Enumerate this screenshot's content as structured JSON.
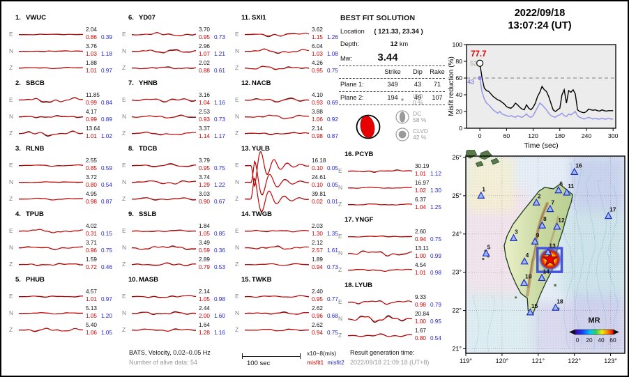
{
  "header": {
    "date": "2022/09/18",
    "time": "13:07:24  (UT)"
  },
  "best_fit": {
    "title": "BEST FIT SOLUTION",
    "location_label": "Location",
    "location_value": "( 121.33,  23.34 )",
    "depth_label": "Depth:",
    "depth_value": "12",
    "depth_unit": "km",
    "mw_label": "Mw:",
    "mw_value": "3.44",
    "table": {
      "headers": [
        "Strike",
        "Dip",
        "Rake"
      ],
      "rows": [
        {
          "label": "Plane 1:",
          "strike": "349",
          "dip": "43",
          "rake": "71"
        },
        {
          "label": "Plane 2:",
          "strike": "194",
          "dip": "49",
          "rake": "107"
        }
      ]
    },
    "decomposition": [
      {
        "name": "ISO",
        "pct": "0 %"
      },
      {
        "name": "DC",
        "pct": "58 %"
      },
      {
        "name": "CLVD",
        "pct": "42 %"
      }
    ]
  },
  "stations": [
    {
      "num": "1.",
      "code": "VWUC",
      "comps": [
        {
          "label": "E",
          "amp": "2.04",
          "m1": "0.86",
          "m2": "0.39",
          "w": 0.07
        },
        {
          "label": "N",
          "amp": "3.76",
          "m1": "1.03",
          "m2": "1.18",
          "w": 0.09
        },
        {
          "label": "Z",
          "amp": "1.88",
          "m1": "1.01",
          "m2": "0.97",
          "w": 0.12
        }
      ]
    },
    {
      "num": "2.",
      "code": "SBCB",
      "comps": [
        {
          "label": "E",
          "amp": "11.85",
          "m1": "0.99",
          "m2": "0.84",
          "w": 0.5
        },
        {
          "label": "N",
          "amp": "4.17",
          "m1": "0.99",
          "m2": "0.89",
          "w": 0.2
        },
        {
          "label": "Z",
          "amp": "13.64",
          "m1": "1.01",
          "m2": "1.02",
          "w": 0.45
        }
      ]
    },
    {
      "num": "3.",
      "code": "RLNB",
      "comps": [
        {
          "label": "E",
          "amp": "2.55",
          "m1": "0.85",
          "m2": "0.59",
          "w": 0.12
        },
        {
          "label": "N",
          "amp": "3.72",
          "m1": "0.80",
          "m2": "0.54",
          "w": 0.08
        },
        {
          "label": "Z",
          "amp": "4.95",
          "m1": "0.98",
          "m2": "0.87",
          "w": 0.15
        }
      ]
    },
    {
      "num": "4.",
      "code": "TPUB",
      "comps": [
        {
          "label": "E",
          "amp": "4.02",
          "m1": "0.31",
          "m2": "0.15",
          "w": 0.3
        },
        {
          "label": "N",
          "amp": "3.71",
          "m1": "0.96",
          "m2": "0.75",
          "w": 0.28
        },
        {
          "label": "Z",
          "amp": "1.59",
          "m1": "0.72",
          "m2": "0.46",
          "w": 0.2
        }
      ]
    },
    {
      "num": "5.",
      "code": "PHUB",
      "comps": [
        {
          "label": "E",
          "amp": "4.57",
          "m1": "1.01",
          "m2": "0.97",
          "w": 0.12
        },
        {
          "label": "N",
          "amp": "5.13",
          "m1": "1.05",
          "m2": "1.20",
          "w": 0.1
        },
        {
          "label": "Z",
          "amp": "5.40",
          "m1": "1.06",
          "m2": "1.05",
          "w": 0.3
        }
      ]
    },
    {
      "num": "6.",
      "code": "YD07",
      "comps": [
        {
          "label": "E",
          "amp": "3.70",
          "m1": "0.95",
          "m2": "0.73",
          "w": 0.28
        },
        {
          "label": "N",
          "amp": "2.96",
          "m1": "1.07",
          "m2": "1.21",
          "w": 0.3
        },
        {
          "label": "Z",
          "amp": "2.02",
          "m1": "0.88",
          "m2": "0.61",
          "w": 0.2
        }
      ]
    },
    {
      "num": "7.",
      "code": "YHNB",
      "comps": [
        {
          "label": "E",
          "amp": "3.16",
          "m1": "1.04",
          "m2": "1.16",
          "w": 0.32
        },
        {
          "label": "N",
          "amp": "2.53",
          "m1": "0.93",
          "m2": "0.73",
          "w": 0.28
        },
        {
          "label": "Z",
          "amp": "3.37",
          "m1": "1.14",
          "m2": "1.17",
          "w": 0.3
        }
      ]
    },
    {
      "num": "8.",
      "code": "TDCB",
      "comps": [
        {
          "label": "E",
          "amp": "3.79",
          "m1": "0.95",
          "m2": "0.75",
          "w": 0.28
        },
        {
          "label": "N",
          "amp": "3.74",
          "m1": "1.29",
          "m2": "1.22",
          "w": 0.35
        },
        {
          "label": "Z",
          "amp": "3.03",
          "m1": "0.90",
          "m2": "0.67",
          "w": 0.3
        }
      ]
    },
    {
      "num": "9.",
      "code": "SSLB",
      "comps": [
        {
          "label": "E",
          "amp": "1.84",
          "m1": "1.05",
          "m2": "0.85",
          "w": 0.18
        },
        {
          "label": "N",
          "amp": "3.49",
          "m1": "0.59",
          "m2": "0.36",
          "w": 0.45
        },
        {
          "label": "Z",
          "amp": "2.89",
          "m1": "0.79",
          "m2": "0.53",
          "w": 0.28
        }
      ]
    },
    {
      "num": "10.",
      "code": "MASB",
      "comps": [
        {
          "label": "E",
          "amp": "2.14",
          "m1": "1.05",
          "m2": "0.98",
          "w": 0.22
        },
        {
          "label": "N",
          "amp": "2.44",
          "m1": "2.00",
          "m2": "1.60",
          "w": 0.28
        },
        {
          "label": "Z",
          "amp": "1.64",
          "m1": "1.28",
          "m2": "1.16",
          "w": 0.22
        }
      ]
    },
    {
      "num": "11.",
      "code": "SXI1",
      "comps": [
        {
          "label": "E",
          "amp": "3.62",
          "m1": "1.15",
          "m2": "1.26",
          "w": 0.35
        },
        {
          "label": "N",
          "amp": "6.04",
          "m1": "1.03",
          "m2": "1.08",
          "w": 0.4
        },
        {
          "label": "Z",
          "amp": "4.26",
          "m1": "0.95",
          "m2": "0.75",
          "w": 0.35
        }
      ]
    },
    {
      "num": "12.",
      "code": "NACB",
      "comps": [
        {
          "label": "E",
          "amp": "4.10",
          "m1": "0.93",
          "m2": "0.69",
          "w": 0.38
        },
        {
          "label": "N",
          "amp": "3.88",
          "m1": "1.06",
          "m2": "0.92",
          "w": 0.35
        },
        {
          "label": "Z",
          "amp": "2.14",
          "m1": "0.98",
          "m2": "0.87",
          "w": 0.2
        }
      ]
    },
    {
      "num": "13.",
      "code": "YULB",
      "comps": [
        {
          "label": "E",
          "amp": "16.18",
          "m1": "0.10",
          "m2": "0.05",
          "w": 1
        },
        {
          "label": "N",
          "amp": "24.61",
          "m1": "0.10",
          "m2": "0.05",
          "w": 1
        },
        {
          "label": "Z",
          "amp": "39.81",
          "m1": "0.02",
          "m2": "0.01",
          "w": 1
        }
      ]
    },
    {
      "num": "14.",
      "code": "TWGB",
      "comps": [
        {
          "label": "E",
          "amp": "2.03",
          "m1": "1.30",
          "m2": "1.35",
          "w": 0.15
        },
        {
          "label": "N",
          "amp": "2.12",
          "m1": "2.57",
          "m2": "1.61",
          "w": 0.3
        },
        {
          "label": "Z",
          "amp": "1.89",
          "m1": "0.94",
          "m2": "0.73",
          "w": 0.15
        }
      ]
    },
    {
      "num": "15.",
      "code": "TWKB",
      "comps": [
        {
          "label": "E",
          "amp": "2.40",
          "m1": "0.95",
          "m2": "0.77",
          "w": 0.18
        },
        {
          "label": "N",
          "amp": "2.62",
          "m1": "0.96",
          "m2": "0.68",
          "w": 0.22
        },
        {
          "label": "Z",
          "amp": "2.62",
          "m1": "0.94",
          "m2": "0.75",
          "w": 0.16
        }
      ]
    },
    {
      "num": "16.",
      "code": "PCYB",
      "comps": [
        {
          "label": "E",
          "amp": "30.19",
          "m1": "1.01",
          "m2": "1.12",
          "w": 0.2
        },
        {
          "label": "N",
          "amp": "16.97",
          "m1": "1.02",
          "m2": "1.30",
          "w": 0.1
        },
        {
          "label": "Z",
          "amp": "6.37",
          "m1": "1.04",
          "m2": "1.25",
          "w": 0.1
        }
      ]
    },
    {
      "num": "17.",
      "code": "YNGF",
      "comps": [
        {
          "label": "E",
          "amp": "2.60",
          "m1": "0.94",
          "m2": "0.75",
          "w": 0.1
        },
        {
          "label": "N",
          "amp": "13.11",
          "m1": "1.00",
          "m2": "0.99",
          "w": 0.5
        },
        {
          "label": "Z",
          "amp": "4.54",
          "m1": "1.01",
          "m2": "0.98",
          "w": 0.2
        }
      ]
    },
    {
      "num": "18.",
      "code": "LYUB",
      "comps": [
        {
          "label": "E",
          "amp": "9.33",
          "m1": "0.98",
          "m2": "0.79",
          "w": 0.35
        },
        {
          "label": "N",
          "amp": "20.84",
          "m1": "1.00",
          "m2": "0.95",
          "w": 0.8
        },
        {
          "label": "Z",
          "amp": "1.67",
          "m1": "0.80",
          "m2": "0.54",
          "w": 0.25
        }
      ]
    }
  ],
  "footer": {
    "band_info": "BATS, Velocity, 0.02–0.05 Hz",
    "alive_data": "Number of alive data: 54",
    "scale_label": "100 sec",
    "units": "x10−8(m/s)",
    "misfit1_label": "misfit1",
    "misfit2_label": "misfit2",
    "result_time_label": "Result generation time:",
    "result_time_value": "2022/09/18 21:09:18 (UT+8)"
  },
  "colors": {
    "observed": "#111111",
    "synthetic": "#d40000",
    "misfit1": "#cf0000",
    "misfit2": "#2424c8",
    "chart_line2": "#9a9ae8",
    "triangle_fill": "#9db8f8",
    "triangle_edge": "#2030c0",
    "epicenter_box": "#4653dd",
    "star_fill": "#ee0000"
  },
  "chart_data": [
    {
      "type": "line",
      "title": "",
      "xlabel": "Time (sec)",
      "ylabel": "Misfit reduction (%)",
      "xlim": [
        -30,
        306
      ],
      "ylim": [
        0,
        100
      ],
      "xticks": [
        0,
        60,
        120,
        180,
        240,
        300
      ],
      "yticks": [
        0,
        20,
        40,
        60,
        80,
        100
      ],
      "threshold": 60,
      "annotations": {
        "best_value": "77.7",
        "gray_count": "53",
        "blue_count": "43"
      },
      "t_start": 0,
      "t_step": 5,
      "series": [
        {
          "name": "best solution misfit reduction",
          "color": "#000000",
          "values": [
            77.7,
            60,
            48,
            45,
            44,
            41,
            38,
            36,
            34,
            33,
            31,
            29,
            26,
            24.5,
            24,
            26,
            30,
            28,
            25,
            23,
            22,
            28,
            24,
            22,
            25,
            30,
            38,
            43,
            50,
            46,
            44,
            38,
            30,
            22,
            20,
            22,
            24,
            40,
            46,
            30,
            45,
            43,
            46,
            41,
            22,
            20,
            19,
            18.5,
            20,
            23,
            22,
            21.5,
            22,
            21,
            20.5,
            22,
            21,
            20.5,
            21,
            21,
            21
          ]
        },
        {
          "name": "secondary misfit reduction",
          "color": "#9a9ae8",
          "values": [
            60,
            43,
            35,
            30,
            28,
            25,
            22,
            20,
            18,
            20,
            17,
            16,
            15,
            14,
            15,
            14,
            13,
            15,
            14,
            13,
            15,
            17,
            14,
            13,
            15,
            20,
            25,
            30,
            28,
            25,
            22,
            18,
            15,
            14,
            13,
            15,
            16,
            18,
            15,
            14,
            17,
            16,
            18,
            20,
            15,
            13,
            12,
            11,
            12,
            13,
            12,
            11,
            12,
            11,
            11,
            12,
            11,
            11,
            12,
            11,
            11
          ]
        }
      ]
    },
    {
      "type": "map",
      "region": {
        "lon": [
          119,
          123
        ],
        "lat": [
          21,
          26
        ]
      },
      "xticks": [
        "119°",
        "120°",
        "121°",
        "122°",
        "123°"
      ],
      "yticks": [
        "26°",
        "25°",
        "24°",
        "23°",
        "22°",
        "21°"
      ],
      "epicenter": {
        "lon": 121.33,
        "lat": 23.34
      },
      "mr_box": {
        "lon": [
          120.98,
          121.65
        ],
        "lat": [
          23.01,
          23.63
        ]
      },
      "stations": [
        {
          "id": "1",
          "lon": 119.42,
          "lat": 25.0
        },
        {
          "id": "2",
          "lon": 120.95,
          "lat": 24.82
        },
        {
          "id": "3",
          "lon": 120.32,
          "lat": 23.89
        },
        {
          "id": "4",
          "lon": 120.62,
          "lat": 23.28
        },
        {
          "id": "5",
          "lon": 119.56,
          "lat": 23.49
        },
        {
          "id": "6",
          "lon": 121.56,
          "lat": 25.14
        },
        {
          "id": "7",
          "lon": 121.33,
          "lat": 24.65
        },
        {
          "id": "8",
          "lon": 121.11,
          "lat": 24.22
        },
        {
          "id": "9",
          "lon": 120.91,
          "lat": 23.8
        },
        {
          "id": "10",
          "lon": 120.61,
          "lat": 22.72
        },
        {
          "id": "11",
          "lon": 121.79,
          "lat": 25.08
        },
        {
          "id": "12",
          "lon": 121.52,
          "lat": 24.19
        },
        {
          "id": "13",
          "lon": 121.27,
          "lat": 23.52
        },
        {
          "id": "14",
          "lon": 121.1,
          "lat": 22.85
        },
        {
          "id": "15",
          "lon": 120.78,
          "lat": 21.95
        },
        {
          "id": "16",
          "lon": 122.0,
          "lat": 25.62
        },
        {
          "id": "17",
          "lon": 122.94,
          "lat": 24.47
        },
        {
          "id": "18",
          "lon": 121.48,
          "lat": 22.07
        }
      ],
      "legend": {
        "label": "MR",
        "ticks": [
          "0",
          "20",
          "40",
          "60"
        ]
      },
      "coastline_taiwan": [
        [
          121.6,
          25.3
        ],
        [
          121.95,
          25.03
        ],
        [
          121.92,
          24.85
        ],
        [
          121.82,
          24.58
        ],
        [
          121.68,
          24.1
        ],
        [
          121.56,
          23.75
        ],
        [
          121.48,
          23.4
        ],
        [
          121.38,
          23.05
        ],
        [
          121.22,
          22.75
        ],
        [
          121.05,
          22.4
        ],
        [
          120.92,
          22.08
        ],
        [
          120.86,
          21.92
        ],
        [
          120.72,
          22.0
        ],
        [
          120.7,
          22.32
        ],
        [
          120.52,
          22.45
        ],
        [
          120.38,
          22.7
        ],
        [
          120.22,
          23.05
        ],
        [
          120.1,
          23.42
        ],
        [
          120.06,
          23.7
        ],
        [
          120.14,
          23.95
        ],
        [
          120.3,
          24.25
        ],
        [
          120.58,
          24.6
        ],
        [
          120.88,
          24.95
        ],
        [
          121.02,
          25.12
        ],
        [
          121.18,
          25.22
        ],
        [
          121.42,
          25.18
        ]
      ]
    }
  ]
}
